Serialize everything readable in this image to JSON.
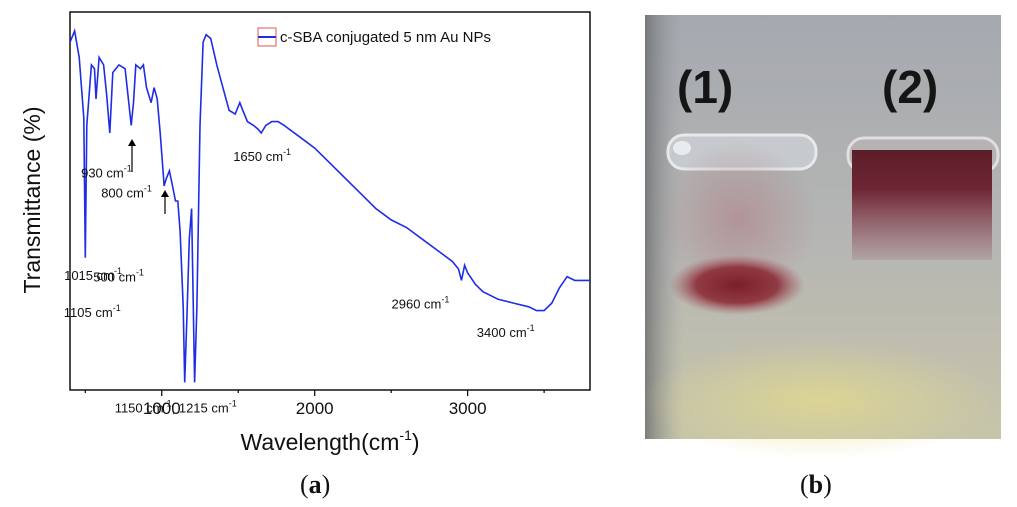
{
  "panel_a": {
    "caption_letter": "a",
    "caption_open": "(",
    "caption_close": ")",
    "legend_label": "c-SBA conjugated 5 nm Au NPs",
    "series_color": "#1f2de6",
    "ylabel": "Transmittance (%)",
    "xlabel_main": "Wavelength(cm",
    "xlabel_exp": "-1",
    "xlabel_close": ")"
  },
  "panel_b": {
    "caption_letter": "b",
    "caption_open": "(",
    "caption_close": ")",
    "label_1": "(1)",
    "label_2": "(2)"
  },
  "chart_data": {
    "type": "line",
    "title": "",
    "xlabel": "Wavelength(cm-1)",
    "ylabel": "Transmittance (%)",
    "xlim": [
      400,
      3800
    ],
    "ylim": [
      0,
      100
    ],
    "x_ticks": [
      1000,
      2000,
      3000
    ],
    "y_ticks_shown": false,
    "legend_position": "top-right",
    "series": [
      {
        "name": "c-SBA conjugated 5 nm Au NPs",
        "color": "#1f2de6",
        "points": [
          [
            400,
            92
          ],
          [
            430,
            95
          ],
          [
            460,
            88
          ],
          [
            490,
            72
          ],
          [
            500,
            35
          ],
          [
            510,
            70
          ],
          [
            540,
            86
          ],
          [
            560,
            85
          ],
          [
            570,
            77
          ],
          [
            590,
            88
          ],
          [
            620,
            86
          ],
          [
            640,
            78
          ],
          [
            660,
            68
          ],
          [
            680,
            84
          ],
          [
            720,
            86
          ],
          [
            760,
            85
          ],
          [
            790,
            74
          ],
          [
            800,
            70
          ],
          [
            815,
            76
          ],
          [
            830,
            86
          ],
          [
            860,
            85
          ],
          [
            880,
            86
          ],
          [
            900,
            80
          ],
          [
            930,
            76
          ],
          [
            950,
            80
          ],
          [
            970,
            77
          ],
          [
            990,
            68
          ],
          [
            1010,
            57
          ],
          [
            1015,
            54
          ],
          [
            1030,
            56
          ],
          [
            1050,
            58
          ],
          [
            1070,
            54
          ],
          [
            1090,
            50
          ],
          [
            1105,
            50
          ],
          [
            1120,
            42
          ],
          [
            1140,
            22
          ],
          [
            1150,
            2
          ],
          [
            1165,
            20
          ],
          [
            1180,
            40
          ],
          [
            1195,
            48
          ],
          [
            1215,
            2
          ],
          [
            1230,
            22
          ],
          [
            1250,
            70
          ],
          [
            1270,
            92
          ],
          [
            1290,
            94
          ],
          [
            1320,
            93
          ],
          [
            1360,
            86
          ],
          [
            1400,
            80
          ],
          [
            1440,
            74
          ],
          [
            1480,
            73
          ],
          [
            1510,
            76
          ],
          [
            1530,
            74
          ],
          [
            1560,
            71
          ],
          [
            1600,
            70
          ],
          [
            1630,
            69
          ],
          [
            1650,
            68
          ],
          [
            1680,
            70
          ],
          [
            1720,
            71
          ],
          [
            1760,
            71
          ],
          [
            1800,
            70
          ],
          [
            1900,
            67
          ],
          [
            2000,
            64
          ],
          [
            2100,
            60
          ],
          [
            2200,
            56
          ],
          [
            2300,
            52
          ],
          [
            2400,
            48
          ],
          [
            2500,
            45
          ],
          [
            2600,
            43
          ],
          [
            2700,
            40
          ],
          [
            2800,
            37
          ],
          [
            2900,
            34
          ],
          [
            2940,
            32
          ],
          [
            2960,
            29
          ],
          [
            2980,
            33
          ],
          [
            3000,
            31
          ],
          [
            3050,
            28
          ],
          [
            3100,
            26
          ],
          [
            3200,
            24
          ],
          [
            3300,
            23
          ],
          [
            3400,
            22
          ],
          [
            3450,
            21
          ],
          [
            3500,
            21
          ],
          [
            3550,
            23
          ],
          [
            3600,
            27
          ],
          [
            3650,
            30
          ],
          [
            3700,
            29
          ],
          [
            3750,
            29
          ],
          [
            3800,
            29
          ]
        ]
      }
    ],
    "annotations": [
      {
        "text": "500 cm",
        "sup": "-1",
        "x": 500,
        "y": 35
      },
      {
        "text": "800 cm",
        "sup": "-1",
        "x": 800,
        "y": 70
      },
      {
        "text": "930 cm",
        "sup": "-1",
        "x": 930,
        "y": 76
      },
      {
        "text": "1015 cm",
        "sup": "-1",
        "x": 1015,
        "y": 54
      },
      {
        "text": "1105 cm",
        "sup": "-1",
        "x": 1105,
        "y": 50
      },
      {
        "text": "1150 cm",
        "sup": "-1",
        "text2": ", 1215 cm",
        "sup2": "-1",
        "x": 1150,
        "y": 2
      },
      {
        "text": "1650 cm",
        "sup": "-1",
        "x": 1650,
        "y": 68
      },
      {
        "text": "2960 cm",
        "sup": "-1",
        "x": 2960,
        "y": 29
      },
      {
        "text": "3400 cm",
        "sup": "-1",
        "x": 3400,
        "y": 22
      }
    ]
  }
}
